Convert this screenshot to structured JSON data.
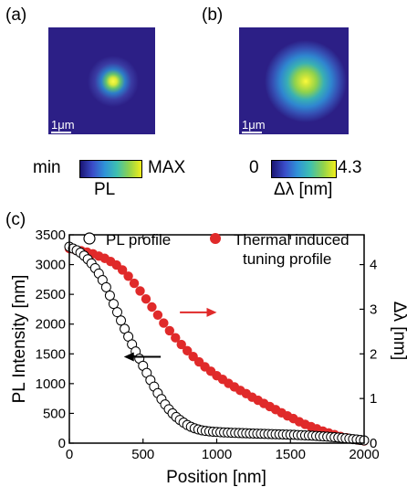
{
  "panels": {
    "a": {
      "label": "(a)",
      "scalebar": "1μm",
      "colorbar_min": "min",
      "colorbar_max": "MAX",
      "colorbar_title": "PL"
    },
    "b": {
      "label": "(b)",
      "scalebar": "1μm",
      "colorbar_min": "0",
      "colorbar_max": "4.3",
      "colorbar_title": "Δλ [nm]"
    },
    "c": {
      "label": "(c)"
    }
  },
  "colors": {
    "map_background": "#2c1f86",
    "series_pl_fill": "#ffffff",
    "series_thermal_fill": "#e02a2a",
    "arrow_red": "#e02a2a",
    "arrow_black": "#000000"
  },
  "chart_data": {
    "type": "scatter",
    "xlabel": "Position [nm]",
    "ylabel": "PL Intensity [nm]",
    "y2label": "Δλ [nm]",
    "xlim": [
      0,
      2000
    ],
    "ylim": [
      0,
      3500
    ],
    "y2lim": [
      0,
      4.667
    ],
    "x_ticks": [
      "0",
      "500",
      "1000",
      "1500",
      "2000"
    ],
    "y_ticks": [
      "0",
      "500",
      "1000",
      "1500",
      "2000",
      "2500",
      "3000",
      "3500"
    ],
    "y2_ticks": [
      "0",
      "1",
      "2",
      "3",
      "4"
    ],
    "legend": [
      {
        "name": "PL profile",
        "marker": "open-circle"
      },
      {
        "name_line1": "Thermal induced",
        "name_line2": "tuning profile",
        "marker": "filled-circle"
      }
    ],
    "series": [
      {
        "name": "PL profile",
        "axis": "left",
        "x": [
          0,
          25,
          50,
          75,
          100,
          125,
          150,
          175,
          200,
          225,
          250,
          275,
          300,
          325,
          350,
          375,
          400,
          425,
          450,
          475,
          500,
          525,
          550,
          575,
          600,
          625,
          650,
          675,
          700,
          725,
          750,
          775,
          800,
          825,
          850,
          875,
          900,
          925,
          950,
          975,
          1000,
          1025,
          1050,
          1075,
          1100,
          1125,
          1150,
          1175,
          1200,
          1225,
          1250,
          1275,
          1300,
          1325,
          1350,
          1375,
          1400,
          1425,
          1450,
          1475,
          1500,
          1525,
          1550,
          1575,
          1600,
          1625,
          1650,
          1675,
          1700,
          1725,
          1750,
          1775,
          1800,
          1825,
          1850,
          1875,
          1900,
          1925,
          1950,
          1975,
          2000
        ],
        "values": [
          3300,
          3270,
          3240,
          3200,
          3150,
          3090,
          3020,
          2940,
          2850,
          2740,
          2620,
          2480,
          2340,
          2200,
          2060,
          1920,
          1790,
          1660,
          1540,
          1420,
          1300,
          1180,
          1060,
          950,
          840,
          740,
          650,
          570,
          500,
          440,
          390,
          345,
          305,
          275,
          250,
          230,
          215,
          205,
          198,
          192,
          188,
          184,
          181,
          178,
          175,
          172,
          170,
          168,
          166,
          164,
          162,
          160,
          158,
          156,
          154,
          152,
          150,
          148,
          146,
          144,
          142,
          140,
          137,
          134,
          131,
          128,
          125,
          121,
          117,
          113,
          109,
          104,
          99,
          94,
          88,
          82,
          75,
          68,
          61,
          54,
          47
        ]
      },
      {
        "name": "Thermal induced tuning profile",
        "axis": "right",
        "x": [
          0,
          40,
          80,
          120,
          160,
          200,
          240,
          280,
          320,
          360,
          400,
          440,
          480,
          520,
          560,
          600,
          640,
          680,
          720,
          760,
          800,
          840,
          880,
          920,
          960,
          1000,
          1040,
          1080,
          1120,
          1160,
          1200,
          1240,
          1280,
          1320,
          1360,
          1400,
          1440,
          1480,
          1520,
          1560,
          1600,
          1640,
          1680,
          1720,
          1760,
          1800,
          1840,
          1880,
          1920,
          1960,
          2000
        ],
        "values": [
          4.36,
          4.33,
          4.31,
          4.28,
          4.24,
          4.19,
          4.14,
          4.07,
          3.99,
          3.88,
          3.74,
          3.58,
          3.41,
          3.23,
          3.05,
          2.87,
          2.69,
          2.52,
          2.36,
          2.21,
          2.07,
          1.94,
          1.82,
          1.71,
          1.61,
          1.51,
          1.43,
          1.34,
          1.26,
          1.18,
          1.11,
          1.03,
          0.96,
          0.89,
          0.82,
          0.75,
          0.68,
          0.61,
          0.55,
          0.48,
          0.42,
          0.37,
          0.32,
          0.27,
          0.23,
          0.19,
          0.15,
          0.12,
          0.09,
          0.07,
          0.05
        ]
      }
    ],
    "annotations": [
      {
        "type": "arrow",
        "direction": "right",
        "color": "red",
        "x": [
          750,
          1000
        ],
        "y_right": 2.93
      },
      {
        "type": "arrow",
        "direction": "left",
        "color": "black",
        "x": [
          370,
          620
        ],
        "y_left": 1450
      }
    ]
  }
}
